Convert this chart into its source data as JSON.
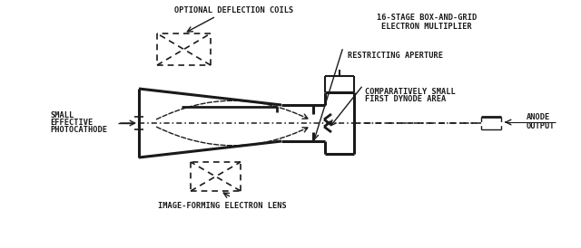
{
  "bg_color": "#ffffff",
  "line_color": "#1a1a1a",
  "labels": {
    "optional_deflection_coils": "OPTIONAL DEFLECTION COILS",
    "stage_box_1": "16-STAGE BOX-AND-GRID",
    "stage_box_2": "ELECTRON MULTIPLIER",
    "small_effective_1": "SMALL",
    "small_effective_2": "EFFECTIVE",
    "small_effective_3": "PHOTOCATHODE",
    "anode": "ANODE",
    "output": "OUTPUT",
    "comparatively_1": "COMPARATIVELY SMALL",
    "comparatively_2": "FIRST DYNODE AREA",
    "restricting_aperture": "RESTRICTING APERTURE",
    "image_forming": "IMAGE-FORMING ELECTRON LENS"
  },
  "figsize": [
    6.4,
    2.74
  ],
  "dpi": 100
}
